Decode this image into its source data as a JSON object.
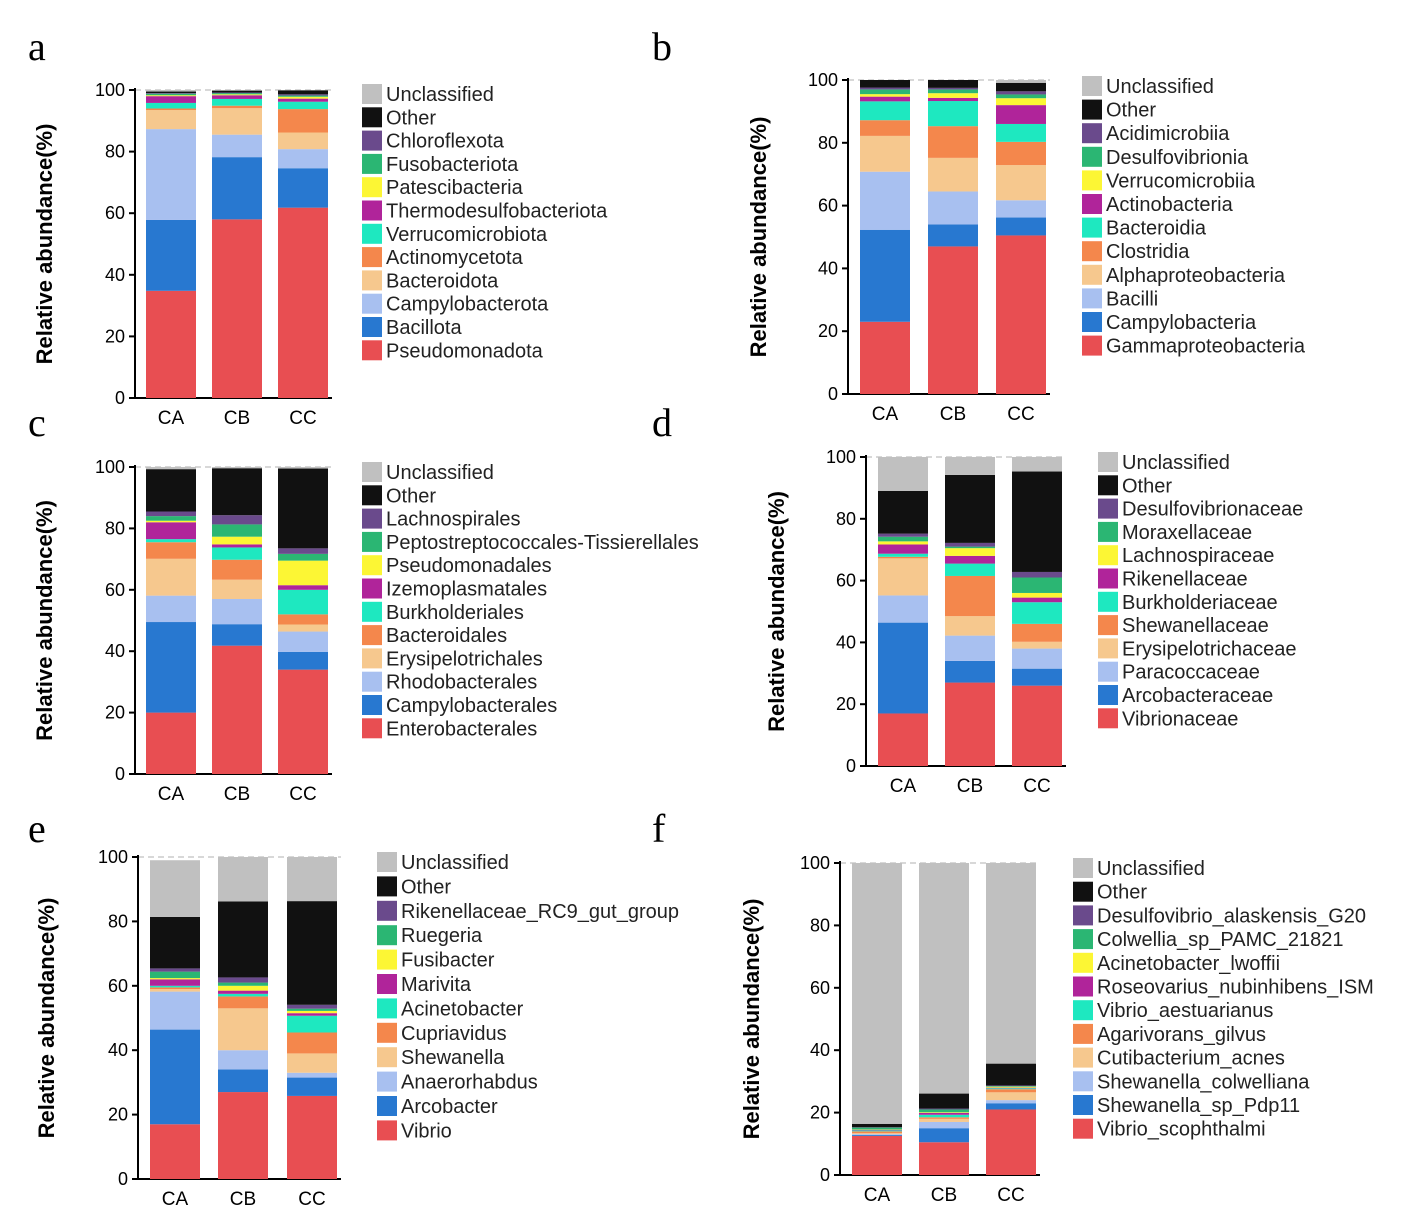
{
  "colors": {
    "Unclassified": "#c0c0c0",
    "Other": "#111111",
    "c3": "#6a4a8c",
    "c4": "#2bb673",
    "c5": "#fcf634",
    "c6": "#b0249a",
    "c7": "#1ee8c0",
    "c8": "#f4874c",
    "c9": "#f6c88e",
    "c10": "#a8c0f0",
    "c11": "#2878d0",
    "c12": "#e84e52"
  },
  "chart_data": [
    {
      "panel": "a",
      "type": "bar",
      "stacked": true,
      "ylabel": "Relative abundance(%)",
      "ylim": [
        0,
        100
      ],
      "yticks": [
        0,
        20,
        40,
        60,
        80,
        100
      ],
      "categories": [
        "CA",
        "CB",
        "CC"
      ],
      "legend": [
        "Unclassified",
        "Other",
        "Chloroflexota",
        "Fusobacteriota",
        "Patescibacteria",
        "Thermodesulfobacteriota",
        "Verrucomicrobiota",
        "Actinomycetota",
        "Bacteroidota",
        "Campylobacterota",
        "Bacillota",
        "Pseudomonadota"
      ],
      "series": [
        {
          "name": "Pseudomonadota",
          "values": [
            34.8,
            58.0,
            61.8
          ]
        },
        {
          "name": "Bacillota",
          "values": [
            23.0,
            20.2,
            12.8
          ]
        },
        {
          "name": "Campylobacterota",
          "values": [
            29.5,
            7.3,
            6.2
          ]
        },
        {
          "name": "Bacteroidota",
          "values": [
            6.2,
            8.6,
            5.4
          ]
        },
        {
          "name": "Actinomycetota",
          "values": [
            0.5,
            0.8,
            7.6
          ]
        },
        {
          "name": "Verrucomicrobiota",
          "values": [
            1.8,
            2.2,
            2.4
          ]
        },
        {
          "name": "Thermodesulfobacteriota",
          "values": [
            2.2,
            1.2,
            1.0
          ]
        },
        {
          "name": "Patescibacteria",
          "values": [
            0.3,
            0.3,
            0.6
          ]
        },
        {
          "name": "Fusobacteriota",
          "values": [
            0.5,
            0.4,
            0.4
          ]
        },
        {
          "name": "Chloroflexota",
          "values": [
            0.2,
            0.2,
            0.4
          ]
        },
        {
          "name": "Other",
          "values": [
            0.5,
            0.6,
            1.3
          ]
        },
        {
          "name": "Unclassified",
          "values": [
            0.5,
            0.2,
            0.1
          ]
        }
      ]
    },
    {
      "panel": "b",
      "type": "bar",
      "stacked": true,
      "ylabel": "Relative abundance(%)",
      "ylim": [
        0,
        100
      ],
      "yticks": [
        0,
        20,
        40,
        60,
        80,
        100
      ],
      "categories": [
        "CA",
        "CB",
        "CC"
      ],
      "legend": [
        "Unclassified",
        "Other",
        "Acidimicrobiia",
        "Desulfovibrionia",
        "Verrucomicrobiia",
        "Actinobacteria",
        "Bacteroidia",
        "Clostridia",
        "Alphaproteobacteria",
        "Bacilli",
        "Campylobacteria",
        "Gammaproteobacteria"
      ],
      "series": [
        {
          "name": "Gammaproteobacteria",
          "values": [
            23.0,
            47.0,
            50.5
          ]
        },
        {
          "name": "Campylobacteria",
          "values": [
            29.3,
            7.0,
            5.7
          ]
        },
        {
          "name": "Bacilli",
          "values": [
            18.5,
            10.5,
            5.5
          ]
        },
        {
          "name": "Alphaproteobacteria",
          "values": [
            11.4,
            10.7,
            11.2
          ]
        },
        {
          "name": "Clostridia",
          "values": [
            5.0,
            10.1,
            7.4
          ]
        },
        {
          "name": "Bacteroidia",
          "values": [
            6.0,
            8.0,
            5.7
          ]
        },
        {
          "name": "Actinobacteria",
          "values": [
            1.5,
            1.0,
            6.0
          ]
        },
        {
          "name": "Verrucomicrobiia",
          "values": [
            0.8,
            1.5,
            2.2
          ]
        },
        {
          "name": "Desulfovibrionia",
          "values": [
            1.5,
            1.2,
            1.2
          ]
        },
        {
          "name": "Acidimicrobiia",
          "values": [
            0.6,
            0.5,
            1.0
          ]
        },
        {
          "name": "Other",
          "values": [
            2.4,
            2.5,
            2.7
          ]
        },
        {
          "name": "Unclassified",
          "values": [
            0.0,
            0.0,
            0.9
          ]
        }
      ]
    },
    {
      "panel": "c",
      "type": "bar",
      "stacked": true,
      "ylabel": "Relative abundance(%)",
      "ylim": [
        0,
        100
      ],
      "yticks": [
        0,
        20,
        40,
        60,
        80,
        100
      ],
      "categories": [
        "CA",
        "CB",
        "CC"
      ],
      "legend": [
        "Unclassified",
        "Other",
        "Lachnospirales",
        "Peptostreptococcales-Tissierellales",
        "Pseudomonadales",
        "Izemoplasmatales",
        "Burkholderiales",
        "Bacteroidales",
        "Erysipelotrichales",
        "Rhodobacterales",
        "Campylobacterales",
        "Enterobacterales"
      ],
      "series": [
        {
          "name": "Enterobacterales",
          "values": [
            20.0,
            41.8,
            34.0
          ]
        },
        {
          "name": "Campylobacterales",
          "values": [
            29.5,
            7.0,
            5.8
          ]
        },
        {
          "name": "Rhodobacterales",
          "values": [
            8.6,
            8.2,
            6.6
          ]
        },
        {
          "name": "Erysipelotrichales",
          "values": [
            12.0,
            6.3,
            2.3
          ]
        },
        {
          "name": "Bacteroidales",
          "values": [
            5.4,
            6.5,
            3.3
          ]
        },
        {
          "name": "Burkholderiales",
          "values": [
            1.0,
            4.0,
            8.0
          ]
        },
        {
          "name": "Izemoplasmatales",
          "values": [
            5.5,
            1.0,
            1.5
          ]
        },
        {
          "name": "Pseudomonadales",
          "values": [
            0.5,
            2.5,
            8.0
          ]
        },
        {
          "name": "Peptostreptococcales-Tissierellales",
          "values": [
            1.5,
            4.0,
            2.2
          ]
        },
        {
          "name": "Lachnospirales",
          "values": [
            1.5,
            3.0,
            1.8
          ]
        },
        {
          "name": "Other",
          "values": [
            13.8,
            15.3,
            26.0
          ]
        },
        {
          "name": "Unclassified",
          "values": [
            0.7,
            0.4,
            0.5
          ]
        }
      ]
    },
    {
      "panel": "d",
      "type": "bar",
      "stacked": true,
      "ylabel": "Relative abundance(%)",
      "ylim": [
        0,
        100
      ],
      "yticks": [
        0,
        20,
        40,
        60,
        80,
        100
      ],
      "categories": [
        "CA",
        "CB",
        "CC"
      ],
      "legend": [
        "Unclassified",
        "Other",
        "Desulfovibrionaceae",
        "Moraxellaceae",
        "Lachnospiraceae",
        "Rikenellaceae",
        "Burkholderiaceae",
        "Shewanellaceae",
        "Erysipelotrichaceae",
        "Paracoccaceae",
        "Arcobacteraceae",
        "Vibrionaceae"
      ],
      "series": [
        {
          "name": "Vibrionaceae",
          "values": [
            17.0,
            27.0,
            26.0
          ]
        },
        {
          "name": "Arcobacteraceae",
          "values": [
            29.4,
            7.0,
            5.5
          ]
        },
        {
          "name": "Paracoccaceae",
          "values": [
            8.8,
            8.2,
            6.5
          ]
        },
        {
          "name": "Erysipelotrichaceae",
          "values": [
            12.0,
            6.3,
            2.2
          ]
        },
        {
          "name": "Shewanellaceae",
          "values": [
            0.5,
            13.0,
            5.8
          ]
        },
        {
          "name": "Burkholderiaceae",
          "values": [
            1.0,
            4.0,
            7.0
          ]
        },
        {
          "name": "Rikenellaceae",
          "values": [
            3.0,
            2.5,
            1.5
          ]
        },
        {
          "name": "Lachnospiraceae",
          "values": [
            1.0,
            2.5,
            1.5
          ]
        },
        {
          "name": "Moraxellaceae",
          "values": [
            1.5,
            0.5,
            5.0
          ]
        },
        {
          "name": "Desulfovibrionaceae",
          "values": [
            1.0,
            1.2,
            1.8
          ]
        },
        {
          "name": "Other",
          "values": [
            13.8,
            22.0,
            32.5
          ]
        },
        {
          "name": "Unclassified",
          "values": [
            11.0,
            5.8,
            4.7
          ]
        }
      ]
    },
    {
      "panel": "e",
      "type": "bar",
      "stacked": true,
      "ylabel": "Relative abundance(%)",
      "ylim": [
        0,
        100
      ],
      "yticks": [
        0,
        20,
        40,
        60,
        80,
        100
      ],
      "categories": [
        "CA",
        "CB",
        "CC"
      ],
      "legend": [
        "Unclassified",
        "Other",
        "Rikenellaceae_RC9_gut_group",
        "Ruegeria",
        "Fusibacter",
        "Marivita",
        "Acinetobacter",
        "Cupriavidus",
        "Shewanella",
        "Anaerorhabdus",
        "Arcobacter",
        "Vibrio"
      ],
      "series": [
        {
          "name": "Vibrio",
          "values": [
            17.0,
            27.0,
            25.8
          ]
        },
        {
          "name": "Arcobacter",
          "values": [
            29.4,
            7.0,
            5.7
          ]
        },
        {
          "name": "Anaerorhabdus",
          "values": [
            11.8,
            6.0,
            1.5
          ]
        },
        {
          "name": "Shewanella",
          "values": [
            0.8,
            13.0,
            6.0
          ]
        },
        {
          "name": "Cupriavidus",
          "values": [
            0.5,
            3.7,
            6.5
          ]
        },
        {
          "name": "Acinetobacter",
          "values": [
            0.5,
            0.8,
            5.2
          ]
        },
        {
          "name": "Marivita",
          "values": [
            2.0,
            1.0,
            0.8
          ]
        },
        {
          "name": "Fusibacter",
          "values": [
            0.4,
            1.5,
            0.7
          ]
        },
        {
          "name": "Ruegeria",
          "values": [
            2.0,
            1.0,
            0.7
          ]
        },
        {
          "name": "Rikenellaceae_RC9_gut_group",
          "values": [
            1.0,
            1.6,
            1.2
          ]
        },
        {
          "name": "Other",
          "values": [
            16.0,
            23.6,
            32.2
          ]
        },
        {
          "name": "Unclassified",
          "values": [
            17.6,
            13.8,
            13.7
          ]
        }
      ]
    },
    {
      "panel": "f",
      "type": "bar",
      "stacked": true,
      "ylabel": "Relative abundance(%)",
      "ylim": [
        0,
        100
      ],
      "yticks": [
        0,
        20,
        40,
        60,
        80,
        100
      ],
      "categories": [
        "CA",
        "CB",
        "CC"
      ],
      "legend": [
        "Unclassified",
        "Other",
        "Desulfovibrio_alaskensis_G20",
        "Colwellia_sp_PAMC_21821",
        "Acinetobacter_lwoffii",
        "Roseovarius_nubinhibens_ISM",
        "Vibrio_aestuarianus",
        "Agarivorans_gilvus",
        "Cutibacterium_acnes",
        "Shewanella_colwelliana",
        "Shewanella_sp_Pdp11",
        "Vibrio_scophthalmi"
      ],
      "series": [
        {
          "name": "Vibrio_scophthalmi",
          "values": [
            12.5,
            10.5,
            21.0
          ]
        },
        {
          "name": "Shewanella_sp_Pdp11",
          "values": [
            0.3,
            4.5,
            2.0
          ]
        },
        {
          "name": "Shewanella_colwelliana",
          "values": [
            0.3,
            2.0,
            1.0
          ]
        },
        {
          "name": "Cutibacterium_acnes",
          "values": [
            0.3,
            1.0,
            2.5
          ]
        },
        {
          "name": "Agarivorans_gilvus",
          "values": [
            0.6,
            0.5,
            1.0
          ]
        },
        {
          "name": "Vibrio_aestuarianus",
          "values": [
            0.3,
            0.8,
            0.3
          ]
        },
        {
          "name": "Roseovarius_nubinhibens_ISM",
          "values": [
            0.2,
            0.6,
            0.2
          ]
        },
        {
          "name": "Acinetobacter_lwoffii",
          "values": [
            0.1,
            0.2,
            0.3
          ]
        },
        {
          "name": "Colwellia_sp_PAMC_21821",
          "values": [
            0.6,
            0.9,
            0.2
          ]
        },
        {
          "name": "Desulfovibrio_alaskensis_G20",
          "values": [
            0.1,
            0.3,
            0.2
          ]
        },
        {
          "name": "Other",
          "values": [
            1.1,
            4.8,
            7.0
          ]
        },
        {
          "name": "Unclassified",
          "values": [
            83.6,
            73.9,
            64.3
          ]
        }
      ]
    }
  ]
}
